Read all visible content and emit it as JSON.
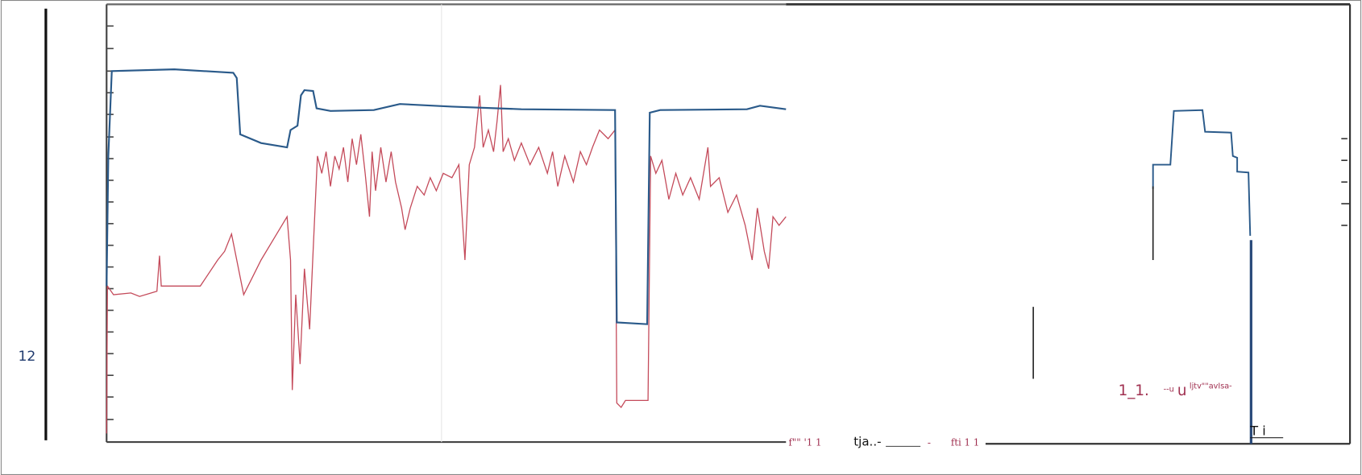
{
  "labels": {
    "left_number": "12",
    "bottom_marks_a": "f\"\"   '1   1",
    "bottom_text_a": "tja..-",
    "bottom_dash": "-",
    "bottom_marks_b": "fti 1 1",
    "right_text_a": "1_1.",
    "right_text_b": "--u",
    "right_text_c": "ljtv\"\"avIsa-",
    "right_text_d": "T  i"
  }
}
